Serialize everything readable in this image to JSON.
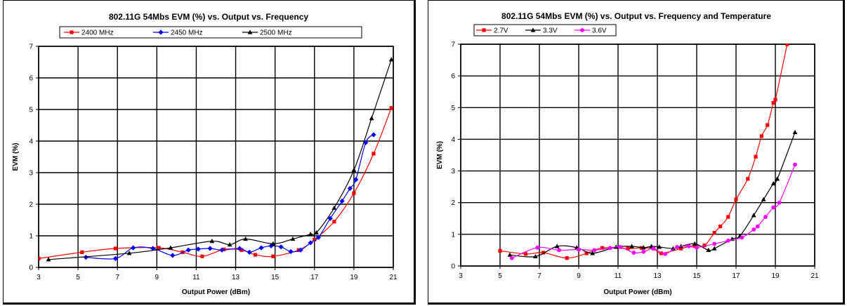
{
  "chart_data": [
    {
      "type": "line",
      "title": "802.11G 54Mbs EVM (%) vs. Output vs. Frequency",
      "xlabel": "Output Power (dBm)",
      "ylabel": "EVM (%)",
      "xlim": [
        3,
        21
      ],
      "ylim": [
        0,
        7
      ],
      "xticks": [
        3,
        5,
        7,
        9,
        11,
        13,
        15,
        17,
        19,
        21
      ],
      "yticks": [
        0,
        1,
        2,
        3,
        4,
        5,
        6,
        7
      ],
      "grid": true,
      "legend_position": "top",
      "series": [
        {
          "name": "2400 MHz",
          "color": "#ff0000",
          "marker": "square",
          "x": [
            3.0,
            5.2,
            6.9,
            9.1,
            10.3,
            11.3,
            12.4,
            13.3,
            14.0,
            14.9,
            16.2,
            17.0,
            18.0,
            19.0,
            20.0,
            20.9
          ],
          "y": [
            0.28,
            0.48,
            0.6,
            0.62,
            0.48,
            0.35,
            0.57,
            0.55,
            0.4,
            0.35,
            0.55,
            0.88,
            1.45,
            2.35,
            3.6,
            5.05
          ]
        },
        {
          "name": "2450 MHz",
          "color": "#0000ff",
          "marker": "diamond",
          "x": [
            5.4,
            6.9,
            7.8,
            8.8,
            9.8,
            10.6,
            11.1,
            11.7,
            12.3,
            13.2,
            13.7,
            14.3,
            14.8,
            15.3,
            15.8,
            16.3,
            16.8,
            17.2,
            17.8,
            18.4,
            18.8,
            19.1,
            19.6,
            20.0
          ],
          "y": [
            0.32,
            0.28,
            0.62,
            0.6,
            0.38,
            0.55,
            0.58,
            0.6,
            0.55,
            0.6,
            0.48,
            0.62,
            0.68,
            0.65,
            0.5,
            0.55,
            0.78,
            0.95,
            1.55,
            2.1,
            2.5,
            2.78,
            3.95,
            4.2
          ]
        },
        {
          "name": "2500 MHz",
          "color": "#000000",
          "marker": "triangle",
          "x": [
            3.5,
            7.6,
            9.7,
            11.8,
            12.7,
            13.5,
            14.9,
            15.9,
            16.8,
            17.1,
            18.0,
            19.0,
            19.9,
            20.9
          ],
          "y": [
            0.25,
            0.45,
            0.62,
            0.83,
            0.72,
            0.9,
            0.75,
            0.9,
            1.05,
            1.1,
            1.88,
            3.08,
            4.72,
            6.58
          ]
        }
      ]
    },
    {
      "type": "line",
      "title": "802.11G 54Mbs EVM (%) vs. Output vs. Frequency and Temperature",
      "xlabel": "Output Power (dBm)",
      "ylabel": "EVM (%)",
      "xlim": [
        3,
        21
      ],
      "ylim": [
        0,
        7
      ],
      "xticks": [
        3,
        5,
        7,
        9,
        11,
        13,
        15,
        17,
        19,
        21
      ],
      "yticks": [
        0,
        1,
        2,
        3,
        4,
        5,
        6,
        7
      ],
      "grid": true,
      "legend_position": "top",
      "series": [
        {
          "name": "2.7V",
          "color": "#ff0000",
          "marker": "square",
          "x": [
            5.0,
            6.3,
            7.2,
            8.4,
            9.4,
            10.2,
            11.5,
            12.2,
            12.8,
            13.2,
            14.2,
            14.9,
            15.4,
            15.9,
            16.2,
            16.6,
            17.0,
            17.6,
            18.0,
            18.3,
            18.6,
            18.9,
            19.0,
            19.6
          ],
          "y": [
            0.48,
            0.38,
            0.42,
            0.25,
            0.4,
            0.57,
            0.55,
            0.57,
            0.55,
            0.4,
            0.55,
            0.65,
            0.65,
            1.05,
            1.25,
            1.55,
            2.1,
            2.75,
            3.45,
            4.1,
            4.45,
            5.15,
            5.25,
            7.0
          ]
        },
        {
          "name": "3.3V",
          "color": "#000000",
          "marker": "triangle",
          "x": [
            5.5,
            6.8,
            7.9,
            8.9,
            9.7,
            10.9,
            11.7,
            12.3,
            12.7,
            13.1,
            13.8,
            14.2,
            14.9,
            15.6,
            15.9,
            16.8,
            17.2,
            17.9,
            18.4,
            18.9,
            19.1,
            20.0
          ],
          "y": [
            0.35,
            0.3,
            0.62,
            0.58,
            0.4,
            0.6,
            0.62,
            0.58,
            0.62,
            0.6,
            0.55,
            0.62,
            0.7,
            0.5,
            0.55,
            0.85,
            0.95,
            1.6,
            2.1,
            2.6,
            2.75,
            4.22
          ]
        },
        {
          "name": "3.6V",
          "color": "#ff00ff",
          "marker": "circle",
          "x": [
            5.6,
            6.9,
            8.0,
            9.0,
            9.8,
            10.6,
            11.1,
            11.8,
            12.3,
            12.8,
            13.4,
            14.0,
            14.6,
            15.0,
            15.9,
            16.6,
            17.3,
            17.9,
            18.1,
            18.5,
            18.9,
            19.2,
            20.0
          ],
          "y": [
            0.25,
            0.58,
            0.5,
            0.52,
            0.5,
            0.57,
            0.6,
            0.42,
            0.45,
            0.55,
            0.38,
            0.6,
            0.62,
            0.58,
            0.7,
            0.8,
            0.9,
            1.15,
            1.25,
            1.55,
            1.85,
            2.0,
            3.2
          ]
        }
      ]
    }
  ]
}
